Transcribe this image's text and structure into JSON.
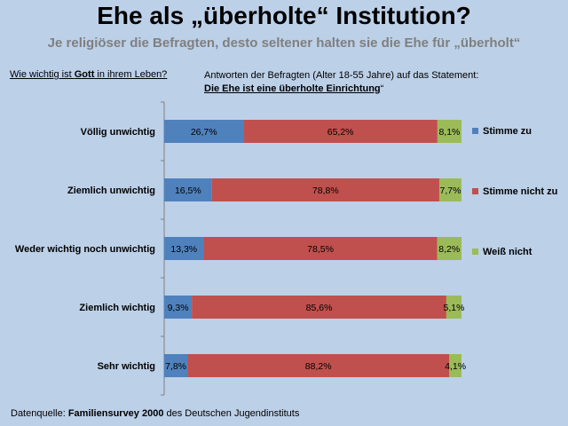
{
  "title": "Ehe als „überholte“ Institution?",
  "subtitle": "Je religiöser die Befragten, desto seltener halten sie die Ehe für „überholt“",
  "question": {
    "before": "Wie wichtig ist ",
    "bold": "Gott",
    "after": " in ihrem Leben?"
  },
  "answers": {
    "line1": "Antworten der Befragten (Alter 18-55 Jahre) auf das Statement:",
    "statement": "Die Ehe ist eine überholte Einrichtung",
    "closing_quote": "“"
  },
  "footer": {
    "prefix": "Datenquelle: ",
    "bold": "Familiensurvey 2000",
    "suffix": " des Deutschen Jugendinstituts"
  },
  "chart_data": {
    "type": "bar",
    "orientation": "horizontal",
    "stacked": "percent",
    "categories": [
      "Völlig unwichtig",
      "Ziemlich unwichtig",
      "Weder wichtig noch unwichtig",
      "Ziemlich wichtig",
      "Sehr wichtig"
    ],
    "series": [
      {
        "name": "Stimme zu",
        "color": "#4f81bd",
        "values": [
          26.7,
          16.5,
          13.3,
          9.3,
          7.8
        ],
        "labels": [
          "26,7%",
          "16,5%",
          "13,3%",
          "9,3%",
          "7,8%"
        ]
      },
      {
        "name": "Stimme nicht zu",
        "color": "#c0504d",
        "values": [
          65.2,
          78.8,
          78.5,
          85.6,
          88.2
        ],
        "labels": [
          "65,2%",
          "78,8%",
          "78,5%",
          "85,6%",
          "88,2%"
        ]
      },
      {
        "name": "Weiß nicht",
        "color": "#9bbb59",
        "values": [
          8.1,
          7.7,
          8.2,
          5.1,
          4.1
        ],
        "labels": [
          "8,1%",
          "7,7%",
          "8,2%",
          "5,1%",
          "4,1%"
        ]
      }
    ],
    "legend": "right",
    "grid": false
  }
}
